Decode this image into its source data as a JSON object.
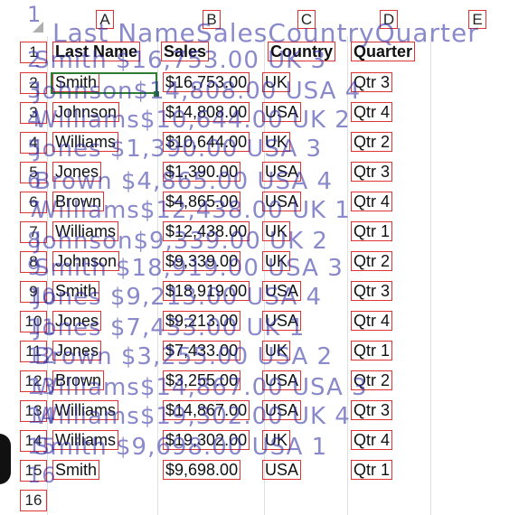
{
  "columns": [
    "A",
    "B",
    "C",
    "D",
    "E"
  ],
  "rows": [
    "1",
    "2",
    "3",
    "4",
    "5",
    "6",
    "7",
    "8",
    "9",
    "10",
    "11",
    "12",
    "13",
    "14",
    "15",
    "16"
  ],
  "header": {
    "last_name": "Last Name",
    "sales": "Sales",
    "country": "Country",
    "quarter": "Quarter"
  },
  "data": [
    {
      "last": "Smith",
      "sales": "$16,753.00",
      "country": "UK",
      "quarter": "Qtr 3"
    },
    {
      "last": "Johnson",
      "sales": "$14,808.00",
      "country": "USA",
      "quarter": "Qtr 4"
    },
    {
      "last": "Williams",
      "sales": "$10,644.00",
      "country": "UK",
      "quarter": "Qtr 2"
    },
    {
      "last": "Jones",
      "sales": "$1,390.00",
      "country": "USA",
      "quarter": "Qtr 3"
    },
    {
      "last": "Brown",
      "sales": "$4,865.00",
      "country": "USA",
      "quarter": "Qtr 4"
    },
    {
      "last": "Williams",
      "sales": "$12,438.00",
      "country": "UK",
      "quarter": "Qtr 1"
    },
    {
      "last": "Johnson",
      "sales": "$9,339.00",
      "country": "UK",
      "quarter": "Qtr 2"
    },
    {
      "last": "Smith",
      "sales": "$18,919.00",
      "country": "USA",
      "quarter": "Qtr 3"
    },
    {
      "last": "Jones",
      "sales": "$9,213.00",
      "country": "USA",
      "quarter": "Qtr 4"
    },
    {
      "last": "Jones",
      "sales": "$7,433.00",
      "country": "UK",
      "quarter": "Qtr 1"
    },
    {
      "last": "Brown",
      "sales": "$3,255.00",
      "country": "USA",
      "quarter": "Qtr 2"
    },
    {
      "last": "Williams",
      "sales": "$14,867.00",
      "country": "USA",
      "quarter": "Qtr 3"
    },
    {
      "last": "Williams",
      "sales": "$19,302.00",
      "country": "UK",
      "quarter": "Qtr 4"
    },
    {
      "last": "Smith",
      "sales": "$9,698.00",
      "country": "USA",
      "quarter": "Qtr 1"
    }
  ],
  "overlay": {
    "header_line": "Last NameSalesCountryQuarter",
    "lines": [
      "Smith     $16,753.00 UK  3",
      "Johnson$14,808.00 USA 4",
      "Williams$10,644.00 UK  2",
      "Jones      $1,390.00 USA 3",
      "Brown     $4,865.00 USA 4",
      "Williams$12,438.00 UK  1",
      "Johnson$9,339.00 UK  2",
      "Smith    $18,919.00 USA 3",
      "Jones      $9,213.00 USA 4",
      "Jones      $7,433.00 UK  1",
      "Brown     $3,255.00 USA 2",
      "Williams$14,867.00 USA 3",
      "Williams$19,302.00 UK  4",
      "Smith     $9,698.00 USA 1"
    ],
    "row_numbers": [
      "1",
      "2",
      "3",
      "4",
      "5",
      "6",
      "7",
      "8",
      "9",
      "10",
      "11",
      "12",
      "13",
      "14",
      "15",
      "16"
    ]
  },
  "colors": {
    "annotation_border": "#dd3333",
    "selection": "#2e7d32",
    "overlay_text": "#2828a0"
  }
}
